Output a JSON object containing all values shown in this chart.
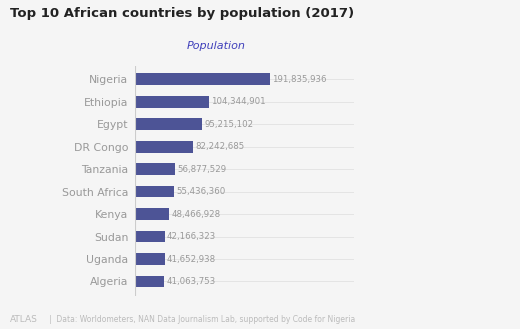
{
  "title": "Top 10 African countries by population (2017)",
  "column_label": "Population",
  "countries": [
    "Nigeria",
    "Ethiopia",
    "Egypt",
    "DR Congo",
    "Tanzania",
    "South Africa",
    "Kenya",
    "Sudan",
    "Uganda",
    "Algeria"
  ],
  "values": [
    191835936,
    104344901,
    95215102,
    82242685,
    56877529,
    55436360,
    48466928,
    42166323,
    41652938,
    41063753
  ],
  "labels": [
    "191,835,936",
    "104,344,901",
    "95,215,102",
    "82,242,685",
    "56,877,529",
    "55,436,360",
    "48,466,928",
    "42,166,323",
    "41,652,938",
    "41,063,753"
  ],
  "bar_color": "#4d5496",
  "bg_color": "#f5f5f5",
  "title_color": "#222222",
  "column_label_color": "#4040bb",
  "country_label_color": "#999999",
  "value_label_color": "#999999",
  "gridline_color": "#dddddd",
  "footer_text": "Data: Worldometers, NAN Data Journalism Lab, supported by Code for Nigeria",
  "atlas_text": "ATLAS",
  "footer_color": "#bbbbbb",
  "xlim": [
    0,
    310000000
  ]
}
